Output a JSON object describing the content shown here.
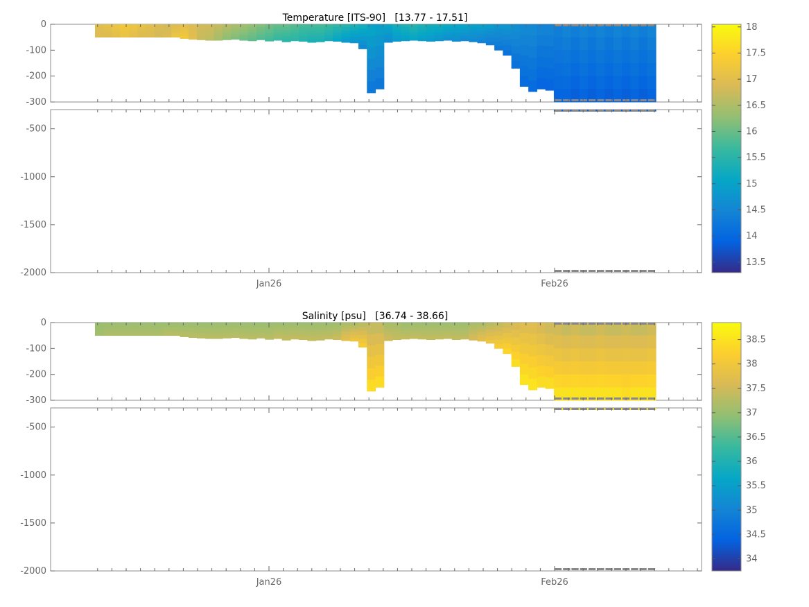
{
  "chart_data": [
    {
      "type": "heatmap",
      "title": "Temperature [ITS-90]   [13.77 - 17.51]",
      "variable": "Temperature",
      "unit": "ITS-90",
      "value_range": [
        13.77,
        17.51
      ],
      "colorbar": {
        "min": 13.3,
        "max": 18.05,
        "ticks": [
          13.5,
          14,
          14.5,
          15,
          15.5,
          16,
          16.5,
          17,
          17.5,
          18
        ]
      },
      "x_tick_labels": [
        "Jan26",
        "Feb26"
      ],
      "upper_panel": {
        "ylim": [
          -300,
          0
        ],
        "yticks": [
          0,
          -100,
          -200,
          -300
        ]
      },
      "lower_panel": {
        "ylim": [
          -2000,
          -300
        ],
        "yticks": [
          -500,
          -1000,
          -1500,
          -2000
        ]
      },
      "profile_max_depth_m": [
        50,
        50,
        50,
        50,
        50,
        50,
        50,
        50,
        50,
        50,
        55,
        58,
        60,
        62,
        62,
        60,
        58,
        62,
        64,
        60,
        65,
        62,
        68,
        64,
        66,
        70,
        68,
        64,
        66,
        70,
        72,
        95,
        265,
        250,
        70,
        66,
        64,
        62,
        64,
        66,
        64,
        62,
        66,
        64,
        68,
        72,
        80,
        100,
        120,
        170,
        240,
        260,
        250,
        255,
        320,
        320,
        320,
        320,
        320,
        320,
        320,
        320,
        320,
        320,
        320,
        320
      ],
      "profile_values": [
        [
          17.0,
          16.9
        ],
        [
          17.1,
          16.9
        ],
        [
          17.2,
          17.0
        ],
        [
          17.3,
          17.1
        ],
        [
          17.2,
          17.0
        ],
        [
          17.1,
          16.9
        ],
        [
          17.0,
          16.9
        ],
        [
          16.9,
          16.8
        ],
        [
          16.8,
          16.9
        ],
        [
          16.9,
          17.2
        ],
        [
          17.0,
          17.3
        ],
        [
          16.9,
          17.0
        ],
        [
          16.8,
          16.7
        ],
        [
          16.8,
          16.6
        ],
        [
          16.7,
          16.4
        ],
        [
          16.6,
          16.2
        ],
        [
          16.5,
          16.1
        ],
        [
          16.4,
          16.0
        ],
        [
          16.3,
          15.9
        ],
        [
          16.2,
          15.8
        ],
        [
          16.1,
          15.7
        ],
        [
          16.0,
          15.6
        ],
        [
          16.0,
          15.5
        ],
        [
          15.9,
          15.5
        ],
        [
          15.8,
          15.4
        ],
        [
          15.8,
          15.3
        ],
        [
          15.8,
          15.3
        ],
        [
          15.7,
          15.2
        ],
        [
          15.6,
          15.0
        ],
        [
          15.5,
          14.8
        ],
        [
          15.4,
          14.7
        ],
        [
          15.3,
          14.5
        ],
        [
          15.1,
          14.2
        ],
        [
          15.0,
          14.2
        ],
        [
          15.1,
          14.6
        ],
        [
          15.3,
          14.8
        ],
        [
          15.4,
          14.9
        ],
        [
          15.5,
          15.0
        ],
        [
          15.4,
          14.9
        ],
        [
          15.3,
          14.8
        ],
        [
          15.3,
          14.7
        ],
        [
          15.2,
          14.6
        ],
        [
          15.1,
          14.6
        ],
        [
          15.1,
          14.5
        ],
        [
          15.0,
          14.5
        ],
        [
          15.0,
          14.4
        ],
        [
          14.9,
          14.3
        ],
        [
          14.8,
          14.2
        ],
        [
          14.8,
          14.1
        ],
        [
          14.7,
          14.1
        ],
        [
          14.6,
          14.0
        ],
        [
          14.6,
          14.0
        ],
        [
          14.5,
          13.9
        ],
        [
          14.5,
          13.9
        ],
        [
          14.4,
          13.9
        ],
        [
          14.5,
          13.9
        ],
        [
          14.4,
          13.8
        ],
        [
          14.5,
          13.9
        ],
        [
          14.4,
          13.8
        ],
        [
          14.5,
          13.9
        ],
        [
          14.4,
          13.8
        ],
        [
          14.5,
          13.9
        ],
        [
          14.4,
          13.8
        ],
        [
          14.5,
          13.9
        ],
        [
          14.4,
          13.8
        ],
        [
          14.5,
          13.9
        ]
      ]
    },
    {
      "type": "heatmap",
      "title": "Salinity [psu]   [36.74 - 38.66]",
      "variable": "Salinity",
      "unit": "psu",
      "value_range": [
        36.74,
        38.66
      ],
      "colorbar": {
        "min": 33.75,
        "max": 38.85,
        "ticks": [
          34,
          34.5,
          35,
          35.5,
          36,
          36.5,
          37,
          37.5,
          38,
          38.5
        ]
      },
      "x_tick_labels": [
        "Jan26",
        "Feb26"
      ],
      "upper_panel": {
        "ylim": [
          -300,
          0
        ],
        "yticks": [
          0,
          -100,
          -200,
          -300
        ]
      },
      "lower_panel": {
        "ylim": [
          -2000,
          -300
        ],
        "yticks": [
          -500,
          -1000,
          -1500,
          -2000
        ]
      },
      "profile_max_depth_m": [
        50,
        50,
        50,
        50,
        50,
        50,
        50,
        50,
        50,
        50,
        55,
        58,
        60,
        62,
        62,
        60,
        58,
        62,
        64,
        60,
        65,
        62,
        68,
        64,
        66,
        70,
        68,
        64,
        66,
        70,
        72,
        95,
        265,
        250,
        70,
        66,
        64,
        62,
        64,
        66,
        64,
        62,
        66,
        64,
        68,
        72,
        80,
        100,
        120,
        170,
        240,
        260,
        250,
        255,
        320,
        320,
        320,
        320,
        320,
        320,
        320,
        320,
        320,
        320,
        320,
        320
      ],
      "profile_values": [
        [
          37.0,
          37.1
        ],
        [
          37.0,
          37.2
        ],
        [
          37.0,
          37.2
        ],
        [
          37.0,
          37.2
        ],
        [
          37.0,
          37.2
        ],
        [
          37.0,
          37.2
        ],
        [
          37.0,
          37.2
        ],
        [
          37.0,
          37.2
        ],
        [
          37.0,
          37.3
        ],
        [
          37.0,
          37.3
        ],
        [
          37.0,
          37.3
        ],
        [
          37.0,
          37.3
        ],
        [
          37.0,
          37.3
        ],
        [
          37.0,
          37.3
        ],
        [
          37.0,
          37.3
        ],
        [
          37.0,
          37.3
        ],
        [
          37.0,
          37.3
        ],
        [
          37.0,
          37.3
        ],
        [
          37.0,
          37.3
        ],
        [
          37.0,
          37.3
        ],
        [
          37.0,
          37.3
        ],
        [
          37.0,
          37.4
        ],
        [
          37.0,
          37.4
        ],
        [
          37.0,
          37.4
        ],
        [
          37.0,
          37.4
        ],
        [
          37.0,
          37.4
        ],
        [
          37.0,
          37.4
        ],
        [
          37.0,
          37.4
        ],
        [
          37.0,
          37.5
        ],
        [
          37.1,
          37.8
        ],
        [
          37.1,
          38.0
        ],
        [
          37.2,
          38.2
        ],
        [
          37.3,
          38.5
        ],
        [
          37.3,
          38.5
        ],
        [
          37.1,
          37.5
        ],
        [
          37.1,
          37.4
        ],
        [
          37.0,
          37.4
        ],
        [
          37.0,
          37.4
        ],
        [
          37.0,
          37.4
        ],
        [
          37.0,
          37.4
        ],
        [
          37.0,
          37.4
        ],
        [
          37.0,
          37.4
        ],
        [
          37.0,
          37.4
        ],
        [
          37.0,
          37.4
        ],
        [
          37.1,
          37.6
        ],
        [
          37.1,
          37.8
        ],
        [
          37.2,
          38.0
        ],
        [
          37.3,
          38.2
        ],
        [
          37.4,
          38.4
        ],
        [
          37.5,
          38.5
        ],
        [
          37.6,
          38.6
        ],
        [
          37.6,
          38.6
        ],
        [
          37.5,
          38.5
        ],
        [
          37.4,
          38.5
        ],
        [
          37.4,
          38.6
        ],
        [
          37.3,
          38.6
        ],
        [
          37.4,
          38.6
        ],
        [
          37.3,
          38.6
        ],
        [
          37.3,
          38.6
        ],
        [
          37.4,
          38.6
        ],
        [
          37.3,
          38.6
        ],
        [
          37.3,
          38.6
        ],
        [
          37.4,
          38.5
        ],
        [
          37.3,
          38.6
        ],
        [
          37.3,
          38.6
        ],
        [
          37.4,
          38.6
        ]
      ]
    }
  ]
}
